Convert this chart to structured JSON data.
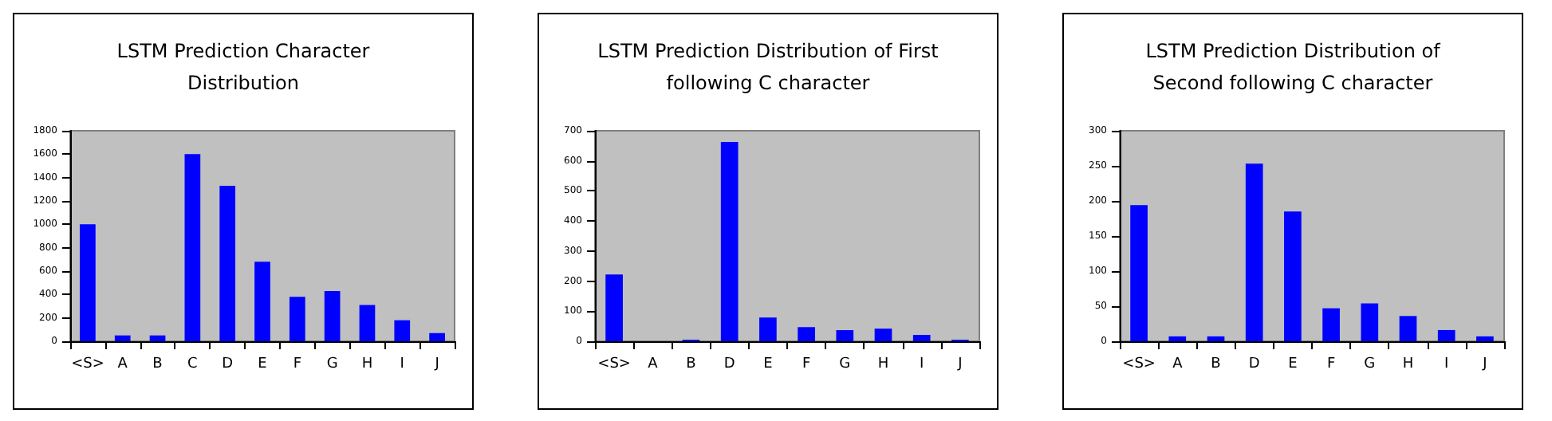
{
  "chart_data": [
    {
      "type": "bar",
      "title": "LSTM Prediction Character\nDistribution",
      "categories": [
        "<S>",
        "A",
        "B",
        "C",
        "D",
        "E",
        "F",
        "G",
        "H",
        "I",
        "J"
      ],
      "color": "#0000ff",
      "values": [
        1000,
        50,
        50,
        1600,
        1330,
        680,
        380,
        430,
        310,
        180,
        70
      ],
      "ylim": [
        0,
        1800
      ],
      "yticks": [
        0,
        200,
        400,
        600,
        800,
        1000,
        1200,
        1400,
        1600,
        1800
      ]
    },
    {
      "type": "bar",
      "title": "LSTM Prediction Distribution of First\nfollowing C character",
      "categories": [
        "<S>",
        "A",
        "B",
        "D",
        "E",
        "F",
        "G",
        "H",
        "I",
        "J"
      ],
      "color": "#0000ff",
      "values": [
        222,
        0,
        5,
        663,
        79,
        47,
        37,
        42,
        21,
        5
      ],
      "ylim": [
        0,
        700
      ],
      "yticks": [
        0,
        100,
        200,
        300,
        400,
        500,
        600,
        700
      ]
    },
    {
      "type": "bar",
      "title": "LSTM Prediction Distribution of\nSecond following C character",
      "categories": [
        "<S>",
        "A",
        "B",
        "D",
        "E",
        "F",
        "G",
        "H",
        "I",
        "J"
      ],
      "color": "#0000ff",
      "values": [
        194,
        7,
        7,
        253,
        185,
        47,
        54,
        36,
        16,
        7
      ],
      "ylim": [
        0,
        300
      ],
      "yticks": [
        0,
        50,
        100,
        150,
        200,
        250,
        300
      ]
    }
  ]
}
